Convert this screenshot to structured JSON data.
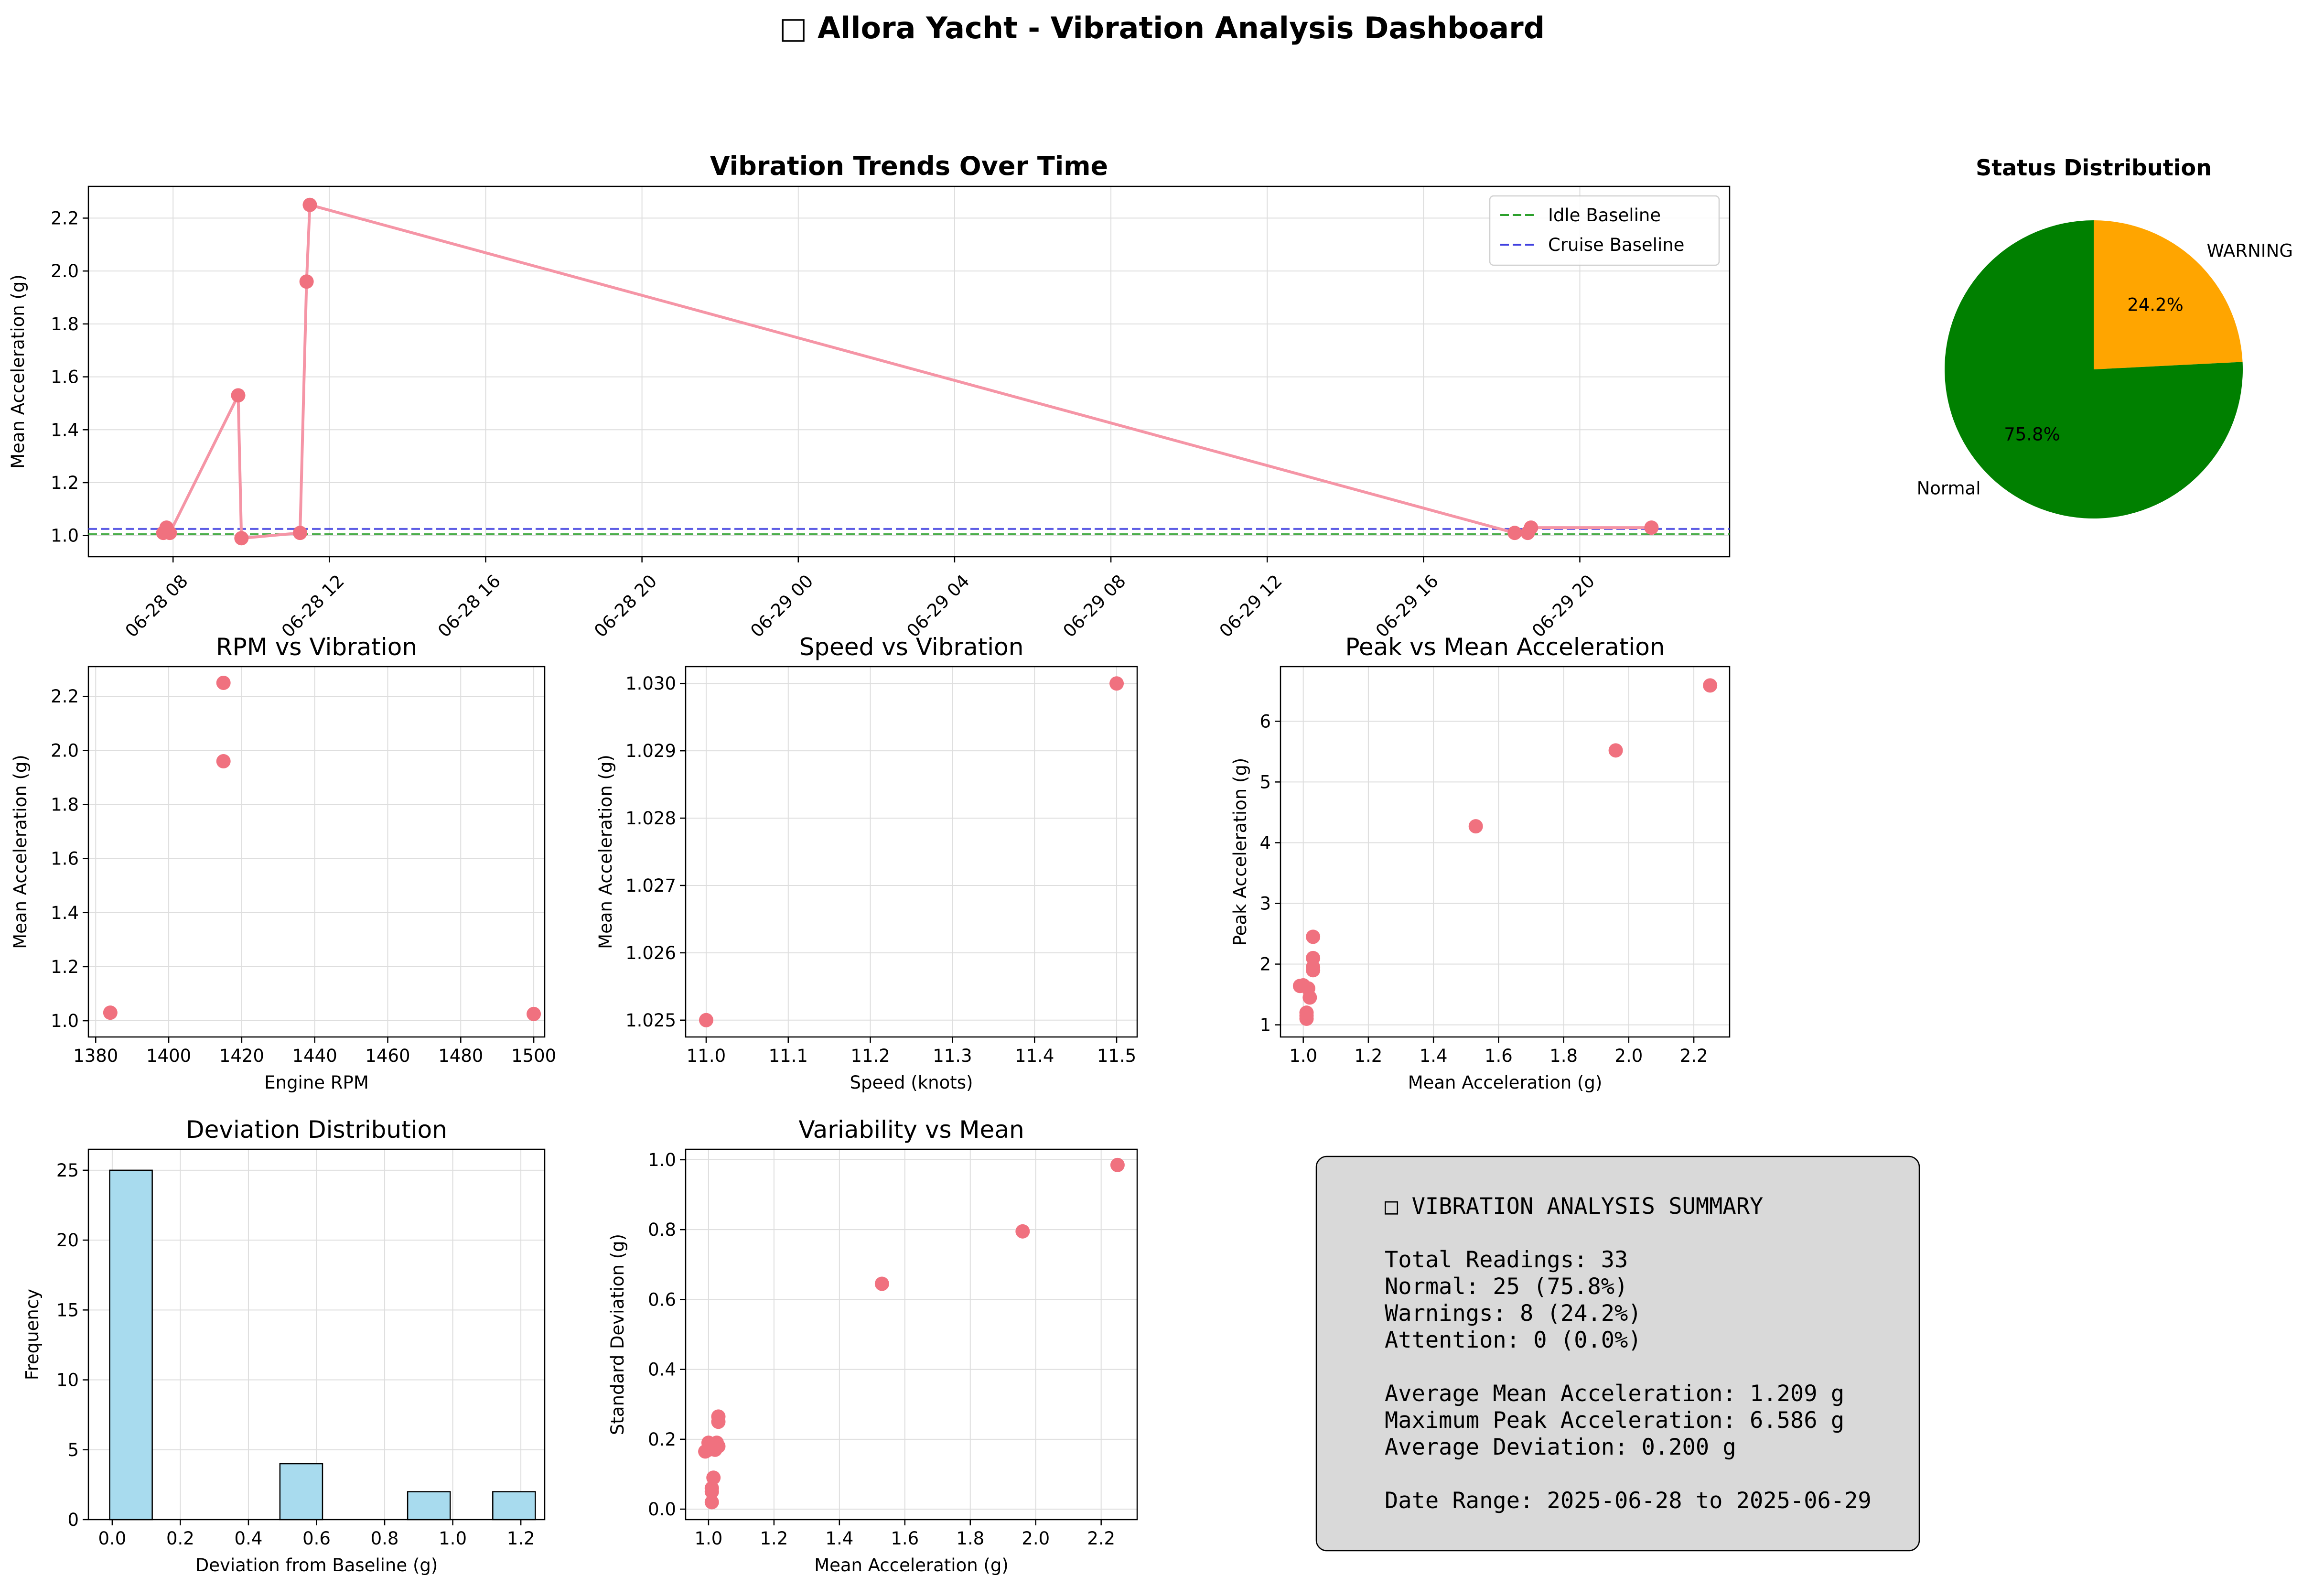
{
  "suptitle": "□ Allora Yacht - Vibration Analysis Dashboard",
  "colors": {
    "point": "#f0717f",
    "line": "#f595a6",
    "idle": "#2ca02c",
    "cruise": "#4040e0",
    "normal": "#008000",
    "warning": "#ffa500",
    "hist": "#a8dbee",
    "summary_bg": "#d9d9d9"
  },
  "chart_data": [
    {
      "id": "trend",
      "type": "line",
      "title": "Vibration Trends Over Time",
      "xlabel": "",
      "ylabel": "Mean Acceleration (g)",
      "xlim": [
        "2025-06-28 05:50",
        "2025-06-29 23:50"
      ],
      "ylim": [
        0.92,
        2.32
      ],
      "xticks": [
        "06-28 08",
        "06-28 12",
        "06-28 16",
        "06-28 20",
        "06-29 00",
        "06-29 04",
        "06-29 08",
        "06-29 12",
        "06-29 16",
        "06-29 20"
      ],
      "yticks": [
        "1.0",
        "1.2",
        "1.4",
        "1.6",
        "1.8",
        "2.0",
        "2.2"
      ],
      "grid": true,
      "legend": "top-right",
      "x": [
        "2025-06-28 07:45",
        "2025-06-28 07:50",
        "2025-06-28 07:55",
        "2025-06-28 09:40",
        "2025-06-28 09:45",
        "2025-06-28 11:15",
        "2025-06-28 11:25",
        "2025-06-28 11:30",
        "2025-06-29 18:20",
        "2025-06-29 18:40",
        "2025-06-29 18:45",
        "2025-06-29 21:50"
      ],
      "y": [
        1.01,
        1.03,
        1.01,
        1.53,
        0.99,
        1.01,
        1.96,
        2.25,
        1.01,
        1.01,
        1.03,
        1.03
      ],
      "baselines": [
        {
          "name": "Idle Baseline",
          "value": 1.005
        },
        {
          "name": "Cruise Baseline",
          "value": 1.025
        }
      ]
    },
    {
      "id": "status",
      "type": "pie",
      "title": "Status Distribution",
      "labels": [
        "WARNING",
        "Normal"
      ],
      "values": [
        24.2,
        75.8
      ],
      "pct_labels": [
        "24.2%",
        "75.8%"
      ]
    },
    {
      "id": "rpm",
      "type": "scatter",
      "title": "RPM vs Vibration",
      "xlabel": "Engine RPM",
      "ylabel": "Mean Acceleration (g)",
      "xlim": [
        1378,
        1503
      ],
      "ylim": [
        0.94,
        2.31
      ],
      "xticks": [
        1380,
        1400,
        1420,
        1440,
        1460,
        1480,
        1500
      ],
      "yticks": [
        "1.0",
        "1.2",
        "1.4",
        "1.6",
        "1.8",
        "2.0",
        "2.2"
      ],
      "grid": true,
      "x": [
        1384,
        1415,
        1415,
        1500
      ],
      "y": [
        1.03,
        2.25,
        1.96,
        1.025
      ]
    },
    {
      "id": "speed",
      "type": "scatter",
      "title": "Speed vs Vibration",
      "xlabel": "Speed (knots)",
      "ylabel": "Mean Acceleration (g)",
      "xlim": [
        10.975,
        11.525
      ],
      "ylim": [
        1.02475,
        1.03025
      ],
      "xticks": [
        "11.0",
        "11.1",
        "11.2",
        "11.3",
        "11.4",
        "11.5"
      ],
      "yticks": [
        "1.025",
        "1.026",
        "1.027",
        "1.028",
        "1.029",
        "1.030"
      ],
      "grid": true,
      "x": [
        11.0,
        11.5
      ],
      "y": [
        1.025,
        1.03
      ]
    },
    {
      "id": "peak",
      "type": "scatter",
      "title": "Peak vs Mean Acceleration",
      "xlabel": "Mean Acceleration (g)",
      "ylabel": "Peak Acceleration (g)",
      "xlim": [
        0.93,
        2.31
      ],
      "ylim": [
        0.8,
        6.9
      ],
      "xticks": [
        "1.0",
        "1.2",
        "1.4",
        "1.6",
        "1.8",
        "2.0",
        "2.2"
      ],
      "yticks": [
        "1",
        "2",
        "3",
        "4",
        "5",
        "6"
      ],
      "grid": true,
      "x": [
        0.99,
        1.0,
        1.01,
        1.01,
        1.01,
        1.02,
        1.015,
        1.03,
        1.03,
        1.03,
        1.03,
        1.53,
        1.96,
        2.25
      ],
      "y": [
        1.64,
        1.65,
        1.1,
        1.15,
        1.2,
        1.45,
        1.6,
        1.9,
        1.95,
        2.1,
        2.45,
        4.27,
        5.52,
        6.59
      ]
    },
    {
      "id": "deviation",
      "type": "bar",
      "title": "Deviation Distribution",
      "xlabel": "Deviation from Baseline (g)",
      "ylabel": "Frequency",
      "xlim": [
        -0.07,
        1.27
      ],
      "ylim": [
        0,
        26.5
      ],
      "xticks": [
        "0.0",
        "0.2",
        "0.4",
        "0.6",
        "0.8",
        "1.0",
        "1.2"
      ],
      "yticks": [
        0,
        5,
        10,
        15,
        20,
        25
      ],
      "grid": true,
      "bins": [
        [
          -0.0075,
          0.1175
        ],
        [
          0.1175,
          0.2425
        ],
        [
          0.2425,
          0.3675
        ],
        [
          0.3675,
          0.4925
        ],
        [
          0.4925,
          0.6175
        ],
        [
          0.6175,
          0.7425
        ],
        [
          0.7425,
          0.8675
        ],
        [
          0.8675,
          0.9925
        ],
        [
          0.9925,
          1.1175
        ],
        [
          1.1175,
          1.2425
        ]
      ],
      "values": [
        25,
        0,
        0,
        0,
        4,
        0,
        0,
        2,
        0,
        2
      ]
    },
    {
      "id": "variability",
      "type": "scatter",
      "title": "Variability vs Mean",
      "xlabel": "Mean Acceleration (g)",
      "ylabel": "Standard Deviation (g)",
      "xlim": [
        0.93,
        2.31
      ],
      "ylim": [
        -0.03,
        1.03
      ],
      "xticks": [
        "1.0",
        "1.2",
        "1.4",
        "1.6",
        "1.8",
        "2.0",
        "2.2"
      ],
      "yticks": [
        "0.0",
        "0.2",
        "0.4",
        "0.6",
        "0.8",
        "1.0"
      ],
      "grid": true,
      "x": [
        0.99,
        1.0,
        1.0,
        1.01,
        1.01,
        1.01,
        1.015,
        1.02,
        1.02,
        1.025,
        1.03,
        1.03,
        1.03,
        1.53,
        1.96,
        2.25
      ],
      "y": [
        0.165,
        0.19,
        0.17,
        0.02,
        0.05,
        0.06,
        0.09,
        0.17,
        0.18,
        0.19,
        0.18,
        0.25,
        0.265,
        0.645,
        0.795,
        0.985
      ]
    }
  ],
  "summary": {
    "title": "□ VIBRATION ANALYSIS SUMMARY",
    "lines": [
      "Total Readings: 33",
      "Normal: 25 (75.8%)",
      "Warnings: 8 (24.2%)",
      "Attention: 0 (0.0%)",
      "Average Mean Acceleration: 1.209 g",
      "Maximum Peak Acceleration: 6.586 g",
      "Average Deviation: 0.200 g",
      "Date Range: 2025-06-28 to 2025-06-29"
    ]
  }
}
